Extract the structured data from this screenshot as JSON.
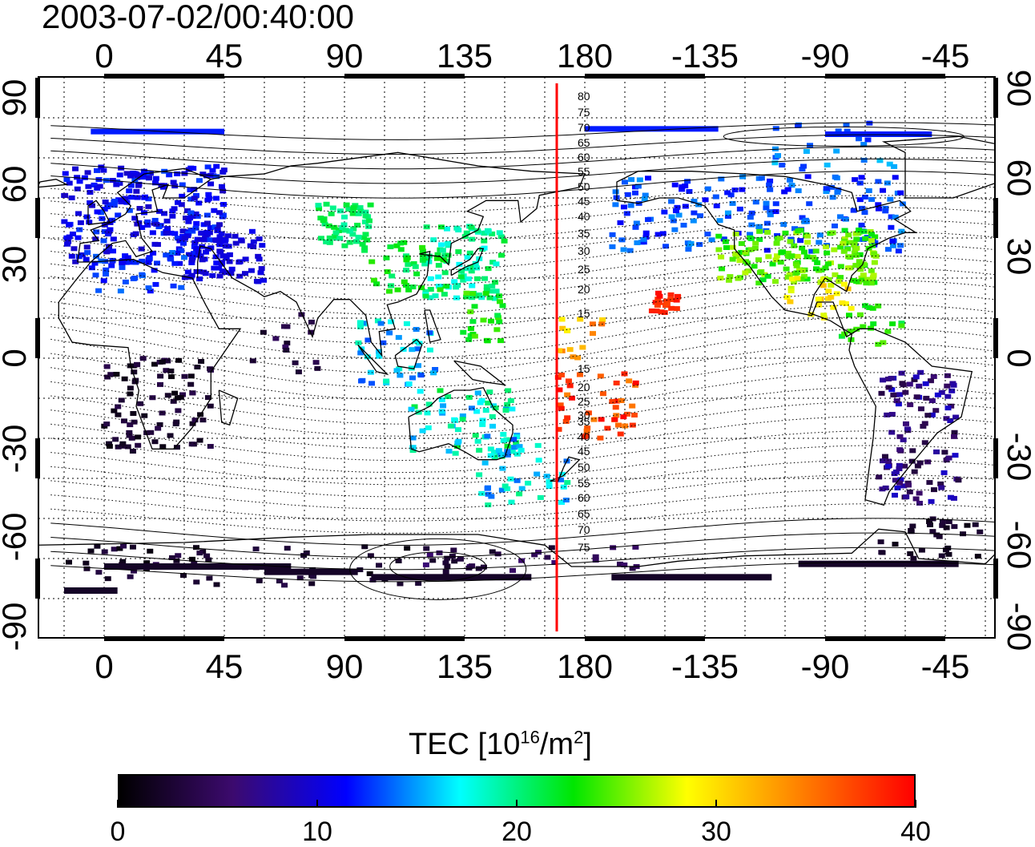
{
  "timestamp": "2003-07-02/00:40:00",
  "map": {
    "top_lon_ticks": [
      "0",
      "45",
      "90",
      "135",
      "180",
      "-135",
      "-90",
      "-45"
    ],
    "bottom_lon_ticks": [
      "0",
      "45",
      "90",
      "135",
      "180",
      "-135",
      "-90",
      "-45"
    ],
    "left_lat_ticks": [
      "90",
      "60",
      "30",
      "0",
      "-30",
      "-60",
      "-90"
    ],
    "right_lat_ticks": [
      "90",
      "60",
      "30",
      "0",
      "-30",
      "-60",
      "-90"
    ],
    "marker_line_color": "#ff0000",
    "contour_labels_north": [
      "80",
      "75",
      "70",
      "65",
      "60",
      "55",
      "50",
      "45",
      "40",
      "35",
      "30",
      "25",
      "20",
      "15"
    ],
    "contour_labels_south": [
      "15",
      "20",
      "25",
      "30",
      "35",
      "40",
      "45",
      "50",
      "55",
      "60",
      "65",
      "70",
      "75"
    ]
  },
  "colorbar": {
    "title_prefix": "TEC  [10",
    "title_exp1": "16",
    "title_mid": "/m",
    "title_exp2": "2",
    "title_suffix": "]",
    "ticks": [
      "0",
      "10",
      "20",
      "30",
      "40"
    ],
    "min": 0,
    "max": 40
  },
  "colors": {
    "scale": [
      "#000000",
      "#3c0a6e",
      "#0000ff",
      "#00ffff",
      "#00e600",
      "#ffff00",
      "#ff8000",
      "#ff0000"
    ]
  }
}
